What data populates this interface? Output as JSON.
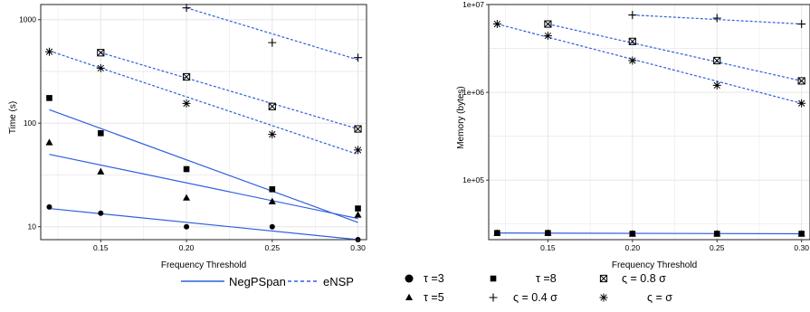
{
  "chart_data": [
    {
      "type": "scatter",
      "xlabel": "Frequency Threshold",
      "ylabel": "Time (s)",
      "y_scale": "log",
      "xlim": [
        0.115,
        0.305
      ],
      "ylim": [
        7.5,
        1400
      ],
      "x_ticks": [
        "0.15",
        "0.20",
        "0.25",
        "0.30"
      ],
      "y_ticks": [
        "10",
        "100",
        "1000"
      ],
      "grid": true,
      "series": [
        {
          "key": "s3",
          "points": [
            [
              0.12,
              15.5
            ],
            [
              0.15,
              13.5
            ],
            [
              0.2,
              10.0
            ],
            [
              0.25,
              10.0
            ],
            [
              0.3,
              7.5
            ]
          ],
          "fits": [
            {
              "style": "NegPSpan",
              "x": [
                0.12,
                0.3
              ],
              "y": [
                15.0,
                7.5
              ]
            }
          ]
        },
        {
          "key": "s5",
          "points": [
            [
              0.12,
              65
            ],
            [
              0.15,
              34
            ],
            [
              0.2,
              19
            ],
            [
              0.25,
              17.5
            ],
            [
              0.3,
              13
            ]
          ],
          "fits": [
            {
              "style": "NegPSpan",
              "x": [
                0.12,
                0.3
              ],
              "y": [
                50,
                12
              ]
            }
          ]
        },
        {
          "key": "s8",
          "points": [
            [
              0.12,
              175
            ],
            [
              0.15,
              80
            ],
            [
              0.2,
              36
            ],
            [
              0.25,
              23
            ],
            [
              0.3,
              15
            ]
          ],
          "fits": [
            {
              "style": "NegPSpan",
              "x": [
                0.12,
                0.3
              ],
              "y": [
                135,
                11
              ]
            }
          ]
        },
        {
          "key": "s04",
          "points": [
            [
              0.2,
              1300
            ],
            [
              0.25,
              600
            ],
            [
              0.3,
              430
            ]
          ],
          "fits": [
            {
              "style": "eNSP",
              "x": [
                0.2,
                0.3
              ],
              "y": [
                1300,
                410
              ]
            }
          ]
        },
        {
          "key": "s08",
          "points": [
            [
              0.15,
              480
            ],
            [
              0.2,
              280
            ],
            [
              0.25,
              145
            ],
            [
              0.3,
              88
            ]
          ],
          "fits": [
            {
              "style": "eNSP",
              "x": [
                0.15,
                0.3
              ],
              "y": [
                480,
                88
              ]
            }
          ]
        },
        {
          "key": "s1",
          "points": [
            [
              0.12,
              490
            ],
            [
              0.15,
              340
            ],
            [
              0.2,
              155
            ],
            [
              0.25,
              78
            ],
            [
              0.3,
              55
            ]
          ],
          "fits": [
            {
              "style": "eNSP",
              "x": [
                0.12,
                0.3
              ],
              "y": [
                500,
                50
              ]
            }
          ]
        }
      ]
    },
    {
      "type": "scatter",
      "xlabel": "Frequency Threshold",
      "ylabel": "Memory (bytes)",
      "y_scale": "log",
      "xlim": [
        0.115,
        0.305
      ],
      "ylim": [
        21000,
        10000000
      ],
      "x_ticks": [
        "0.15",
        "0.20",
        "0.25",
        "0.30"
      ],
      "y_ticks": [
        "1e+05",
        "1e+06",
        "1e+07"
      ],
      "grid": true,
      "series": [
        {
          "key": "s3",
          "points": [
            [
              0.12,
              25000
            ],
            [
              0.15,
              25000
            ],
            [
              0.2,
              24500
            ],
            [
              0.25,
              24500
            ],
            [
              0.3,
              24500
            ]
          ],
          "fits": [
            {
              "style": "NegPSpan",
              "x": [
                0.12,
                0.3
              ],
              "y": [
                25000,
                24500
              ]
            }
          ]
        },
        {
          "key": "s5",
          "points": [
            [
              0.12,
              25000
            ],
            [
              0.15,
              25000
            ],
            [
              0.2,
              24500
            ],
            [
              0.25,
              24500
            ],
            [
              0.3,
              24500
            ]
          ],
          "fits": []
        },
        {
          "key": "s8",
          "points": [
            [
              0.12,
              25000
            ],
            [
              0.15,
              25000
            ],
            [
              0.2,
              24500
            ],
            [
              0.25,
              24500
            ],
            [
              0.3,
              24500
            ]
          ],
          "fits": []
        },
        {
          "key": "s04",
          "points": [
            [
              0.2,
              7600000
            ],
            [
              0.25,
              7000000
            ],
            [
              0.3,
              6000000
            ]
          ],
          "fits": [
            {
              "style": "eNSP",
              "x": [
                0.2,
                0.3
              ],
              "y": [
                7600000,
                6000000
              ]
            }
          ]
        },
        {
          "key": "s08",
          "points": [
            [
              0.15,
              6000000
            ],
            [
              0.2,
              3800000
            ],
            [
              0.25,
              2300000
            ],
            [
              0.3,
              1350000
            ]
          ],
          "fits": [
            {
              "style": "eNSP",
              "x": [
                0.15,
                0.3
              ],
              "y": [
                6000000,
                1350000
              ]
            }
          ]
        },
        {
          "key": "s1",
          "points": [
            [
              0.12,
              6000000
            ],
            [
              0.15,
              4400000
            ],
            [
              0.2,
              2300000
            ],
            [
              0.25,
              1200000
            ],
            [
              0.3,
              750000
            ]
          ],
          "fits": [
            {
              "style": "eNSP",
              "x": [
                0.12,
                0.3
              ],
              "y": [
                6000000,
                750000
              ]
            }
          ]
        }
      ]
    }
  ],
  "legend": {
    "lines": [
      {
        "key": "NegPSpan",
        "label": "NegPSpan",
        "dash": "solid"
      },
      {
        "key": "eNSP",
        "label": "eNSP",
        "dash": "dashed"
      }
    ],
    "markers": [
      {
        "key": "s3",
        "symbol": "circle",
        "label": "τ =3"
      },
      {
        "key": "s8",
        "symbol": "square",
        "label": "τ =8"
      },
      {
        "key": "s08",
        "symbol": "boxed-x",
        "label": "ς = 0.8 σ"
      },
      {
        "key": "s5",
        "symbol": "triangle",
        "label": "τ =5"
      },
      {
        "key": "s04",
        "symbol": "plus",
        "label": "ς = 0.4 σ"
      },
      {
        "key": "s1",
        "symbol": "asterisk",
        "label": "ς = σ"
      }
    ]
  },
  "colors": {
    "line": "#2f5fe0",
    "grid": "#e6e6e6",
    "panel_border": "#222222",
    "marker": "#000000"
  }
}
